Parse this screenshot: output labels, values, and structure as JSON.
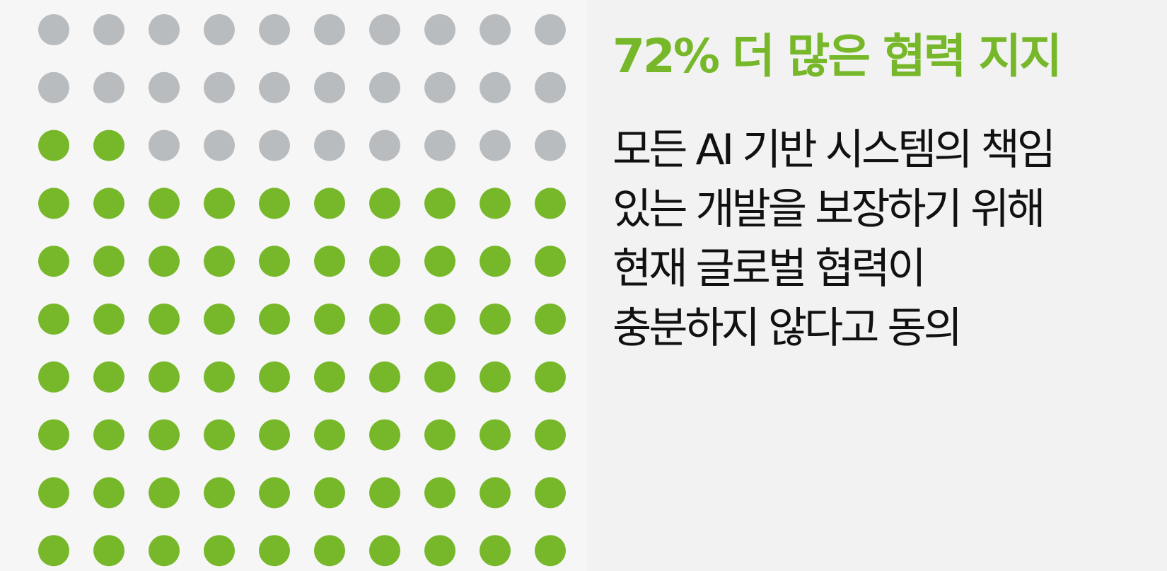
{
  "chart_data": {
    "type": "waffle",
    "title": "72% 더 많은 협력 지지",
    "text": [
      "모든 AI 기반 시스템의 책임",
      "있는 개발을 보장하기 위해",
      "현재 글로벌 협력이",
      "충분하지 않다고 동의"
    ],
    "value": 72,
    "color": "#77b82a",
    "rest_color": "#b9bcbf"
  }
}
